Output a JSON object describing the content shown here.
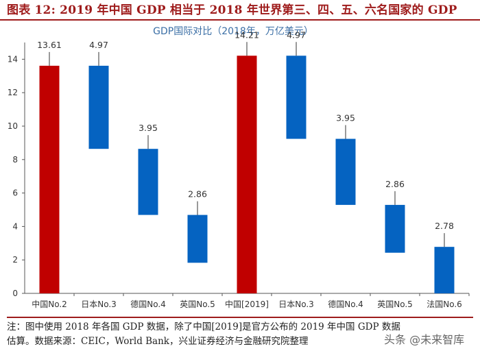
{
  "figure": {
    "title": "图表 12: 2019 年中国 GDP 相当于 2018 年世界第三、四、五、六名国家的 GDP"
  },
  "chart_data": {
    "type": "bar",
    "subtype": "floating-waterfall",
    "title": "GDP国际对比（2018年，万亿美元）",
    "xlabel": "",
    "ylabel": "",
    "ylim": [
      0,
      15
    ],
    "yticks": [
      0,
      2,
      4,
      6,
      8,
      10,
      12,
      14
    ],
    "grid": false,
    "categories": [
      "中国No.2",
      "日本No.3",
      "德国No.4",
      "英国No.5",
      "中国[2019]",
      "日本No.3",
      "德国No.4",
      "英国No.5",
      "法国No.6"
    ],
    "values": [
      13.61,
      4.97,
      3.95,
      2.86,
      14.21,
      4.97,
      3.95,
      2.86,
      2.78
    ],
    "value_labels": [
      "13.61",
      "4.97",
      "3.95",
      "2.86",
      "14.21",
      "4.97",
      "3.95",
      "2.86",
      "2.78"
    ],
    "bases": [
      0,
      8.64,
      4.69,
      1.83,
      0,
      9.24,
      5.29,
      2.43,
      0
    ],
    "colors": [
      "#c00000",
      "#0563c1",
      "#0563c1",
      "#0563c1",
      "#c00000",
      "#0563c1",
      "#0563c1",
      "#0563c1",
      "#0563c1"
    ]
  },
  "footnote": {
    "line1": "注：图中使用 2018 年各国 GDP 数据，除了中国[2019]是官方公布的 2019 年中国 GDP 数据",
    "line2": "估算。数据来源：CEIC，World Bank，兴业证券经济与金融研究院整理"
  },
  "watermark": "头条 @未来智库"
}
